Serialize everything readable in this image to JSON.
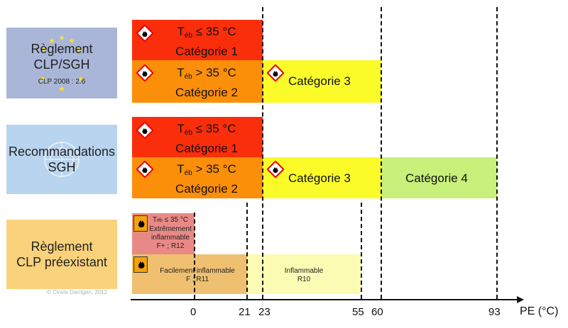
{
  "rows": {
    "clp_sgh": {
      "title_line1": "Règlement",
      "title_line2": "CLP/SGH",
      "subtitle": "CLP 2008 : 2.6"
    },
    "sgh": {
      "title_line1": "Recommandations",
      "title_line2": "SGH"
    },
    "preexistant": {
      "title_line1": "Règlement",
      "title_line2": "CLP préexistant"
    }
  },
  "bars": {
    "teb_prefix": "T",
    "teb_sub": "éb",
    "cat1_cond": " ≤ 35 °C",
    "cat1_label": "Catégorie 1",
    "cat2_cond": " > 35 °C",
    "cat2_label": "Catégorie 2",
    "cat3_label": "Catégorie 3",
    "cat4_label": "Catégorie 4"
  },
  "old": {
    "extreme_cond": " ≤ 35 °C",
    "extreme_line1": "Extrêmement",
    "extreme_line2": "inflammable",
    "extreme_code": "F+ ; R12",
    "facile_line1": "Facilement inflammable",
    "facile_code": "F ; R11",
    "inflammable_line1": "Inflammable",
    "inflammable_code": "R10"
  },
  "axis": {
    "label": "PE (°C)",
    "ticks": [
      "0",
      "21",
      "23",
      "55",
      "60",
      "93"
    ]
  },
  "copyright": "© Clovis Darrigan, 2012",
  "colors": {
    "eu_blue": "#a9b6d8",
    "un_blue": "#b8d4ef",
    "old_orange": "#fbd27c",
    "cat1_red": "#fb2e0b",
    "cat2_orange": "#fb8f09",
    "cat3_yellow": "#fbfb2a",
    "cat4_green": "#c8f07a",
    "old_pink": "#e98985",
    "old_sand": "#efc070",
    "old_pale": "#fbfbb3"
  }
}
